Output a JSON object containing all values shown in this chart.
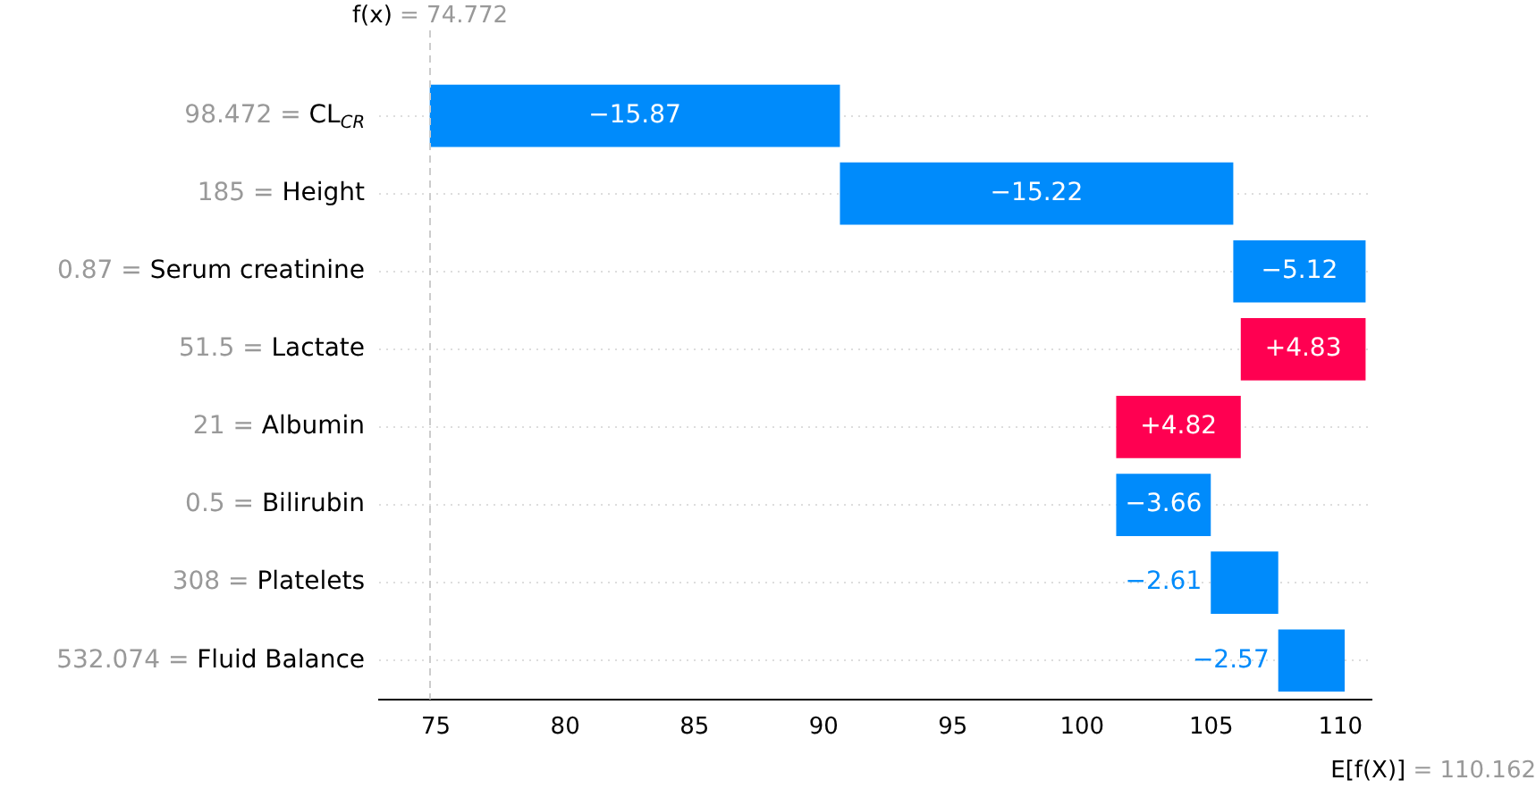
{
  "chart_data": {
    "type": "bar",
    "orientation": "horizontal",
    "categories": [
      "98.472 = CL$_{CR}$",
      "185 = Height",
      "0.87 = Serum creatinine",
      "51.5 = Lactate",
      "21 = Albumin",
      "0.5 = Bilirubin",
      "308 = Platelets",
      "532.074 = Fluid Balance"
    ],
    "values": [
      -15.87,
      -15.22,
      -5.12,
      4.83,
      4.82,
      -3.66,
      -2.61,
      -2.57
    ],
    "base": [
      90.632,
      105.852,
      110.972,
      106.142,
      101.322,
      104.982,
      107.592,
      110.162
    ],
    "colors": [
      "#008bfb",
      "#008bfb",
      "#008bfb",
      "#ff0051",
      "#ff0051",
      "#008bfb",
      "#008bfb",
      "#008bfb"
    ],
    "value_labels": [
      "−15.87",
      "−15.22",
      "−5.12",
      "+4.83",
      "+4.82",
      "−3.66",
      "−2.61",
      "−2.57"
    ],
    "xlim": [
      72.8,
      111.2
    ],
    "xticks": [
      75,
      80,
      85,
      90,
      95,
      100,
      105,
      110
    ],
    "grid": "y",
    "legend": false,
    "ref_lines": [
      {
        "axis": "x",
        "value": 74.772,
        "label": "f(x) = 74.772",
        "color": "#cccccc",
        "line_style": "dashed"
      }
    ],
    "annotations": [
      "E[f(X)] = 110.162"
    ]
  }
}
